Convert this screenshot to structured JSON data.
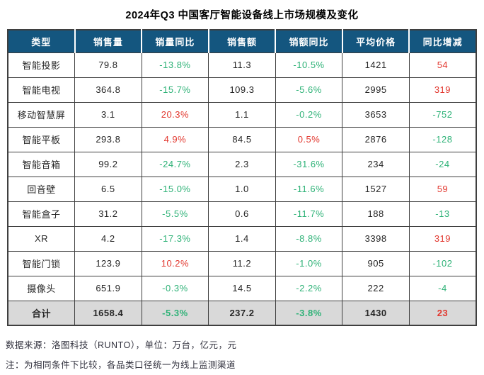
{
  "title": "2024年Q3 中国客厅智能设备线上市场规模及变化",
  "colors": {
    "header_bg": "#14567F",
    "header_text": "#FFFFFF",
    "body_text": "#262626",
    "green": "#2EB277",
    "red": "#E2382F",
    "total_bg": "#D9D9D9",
    "border": "#3F3F3F",
    "note_text": "#32323E"
  },
  "table": {
    "headers": [
      "类型",
      "销售量",
      "销量同比",
      "销售额",
      "销额同比",
      "平均价格",
      "同比增减"
    ],
    "rows": [
      {
        "cells": [
          {
            "t": "智能投影"
          },
          {
            "t": "79.8"
          },
          {
            "t": "-13.8%",
            "c": "g"
          },
          {
            "t": "11.3"
          },
          {
            "t": "-10.5%",
            "c": "g"
          },
          {
            "t": "1421"
          },
          {
            "t": "54",
            "c": "r"
          }
        ]
      },
      {
        "cells": [
          {
            "t": "智能电视"
          },
          {
            "t": "364.8"
          },
          {
            "t": "-15.7%",
            "c": "g"
          },
          {
            "t": "109.3"
          },
          {
            "t": "-5.6%",
            "c": "g"
          },
          {
            "t": "2995"
          },
          {
            "t": "319",
            "c": "r"
          }
        ]
      },
      {
        "cells": [
          {
            "t": "移动智慧屏"
          },
          {
            "t": "3.1"
          },
          {
            "t": "20.3%",
            "c": "r"
          },
          {
            "t": "1.1"
          },
          {
            "t": "-0.2%",
            "c": "g"
          },
          {
            "t": "3653"
          },
          {
            "t": "-752",
            "c": "g"
          }
        ]
      },
      {
        "cells": [
          {
            "t": "智能平板"
          },
          {
            "t": "293.8"
          },
          {
            "t": "4.9%",
            "c": "r"
          },
          {
            "t": "84.5"
          },
          {
            "t": "0.5%",
            "c": "r"
          },
          {
            "t": "2876"
          },
          {
            "t": "-128",
            "c": "g"
          }
        ]
      },
      {
        "cells": [
          {
            "t": "智能音箱"
          },
          {
            "t": "99.2"
          },
          {
            "t": "-24.7%",
            "c": "g"
          },
          {
            "t": "2.3"
          },
          {
            "t": "-31.6%",
            "c": "g"
          },
          {
            "t": "234"
          },
          {
            "t": "-24",
            "c": "g"
          }
        ]
      },
      {
        "cells": [
          {
            "t": "回音壁"
          },
          {
            "t": "6.5"
          },
          {
            "t": "-15.0%",
            "c": "g"
          },
          {
            "t": "1.0"
          },
          {
            "t": "-11.6%",
            "c": "g"
          },
          {
            "t": "1527"
          },
          {
            "t": "59",
            "c": "r"
          }
        ]
      },
      {
        "cells": [
          {
            "t": "智能盒子"
          },
          {
            "t": "31.2"
          },
          {
            "t": "-5.5%",
            "c": "g"
          },
          {
            "t": "0.6"
          },
          {
            "t": "-11.7%",
            "c": "g"
          },
          {
            "t": "188"
          },
          {
            "t": "-13",
            "c": "g"
          }
        ]
      },
      {
        "cells": [
          {
            "t": "XR"
          },
          {
            "t": "4.2"
          },
          {
            "t": "-17.3%",
            "c": "g"
          },
          {
            "t": "1.4"
          },
          {
            "t": "-8.8%",
            "c": "g"
          },
          {
            "t": "3398"
          },
          {
            "t": "319",
            "c": "r"
          }
        ]
      },
      {
        "cells": [
          {
            "t": "智能门锁"
          },
          {
            "t": "123.9"
          },
          {
            "t": "10.2%",
            "c": "r"
          },
          {
            "t": "11.2"
          },
          {
            "t": "-1.0%",
            "c": "g"
          },
          {
            "t": "905"
          },
          {
            "t": "-102",
            "c": "g"
          }
        ]
      },
      {
        "cells": [
          {
            "t": "摄像头"
          },
          {
            "t": "651.9"
          },
          {
            "t": "-0.3%",
            "c": "g"
          },
          {
            "t": "14.5"
          },
          {
            "t": "-2.2%",
            "c": "g"
          },
          {
            "t": "222"
          },
          {
            "t": "-4",
            "c": "g"
          }
        ]
      }
    ],
    "total": {
      "cells": [
        {
          "t": "合计"
        },
        {
          "t": "1658.4"
        },
        {
          "t": "-5.3%",
          "c": "g"
        },
        {
          "t": "237.2"
        },
        {
          "t": "-3.8%",
          "c": "g"
        },
        {
          "t": "1430"
        },
        {
          "t": "23",
          "c": "r"
        }
      ]
    }
  },
  "notes": {
    "source": "数据来源：洛图科技（RUNTO），单位：万台，亿元，元",
    "caveat": "注：为相同条件下比较，各品类口径统一为线上监测渠道"
  },
  "chart_data": {
    "type": "table",
    "title": "2024年Q3 中国客厅智能设备线上市场规模及变化",
    "columns": [
      "类型",
      "销售量",
      "销量同比",
      "销售额",
      "销额同比",
      "平均价格",
      "同比增减"
    ],
    "units": {
      "销售量": "万台",
      "销售额": "亿元",
      "平均价格": "元",
      "同比增减": "元"
    },
    "rows": [
      [
        "智能投影",
        79.8,
        -13.8,
        11.3,
        -10.5,
        1421,
        54
      ],
      [
        "智能电视",
        364.8,
        -15.7,
        109.3,
        -5.6,
        2995,
        319
      ],
      [
        "移动智慧屏",
        3.1,
        20.3,
        1.1,
        -0.2,
        3653,
        -752
      ],
      [
        "智能平板",
        293.8,
        4.9,
        84.5,
        0.5,
        2876,
        -128
      ],
      [
        "智能音箱",
        99.2,
        -24.7,
        2.3,
        -31.6,
        234,
        -24
      ],
      [
        "回音壁",
        6.5,
        -15.0,
        1.0,
        -11.6,
        1527,
        59
      ],
      [
        "智能盒子",
        31.2,
        -5.5,
        0.6,
        -11.7,
        188,
        -13
      ],
      [
        "XR",
        4.2,
        -17.3,
        1.4,
        -8.8,
        3398,
        319
      ],
      [
        "智能门锁",
        123.9,
        10.2,
        11.2,
        -1.0,
        905,
        -102
      ],
      [
        "摄像头",
        651.9,
        -0.3,
        14.5,
        -2.2,
        222,
        -4
      ]
    ],
    "total_row": [
      "合计",
      1658.4,
      -5.3,
      237.2,
      -3.8,
      1430,
      23
    ],
    "color_rule": "负值绿色(#2EB277)，正值红色(#E2382F)，同比列与增减列着色",
    "notes": [
      "数据来源：洛图科技（RUNTO），单位：万台，亿元，元",
      "注：为相同条件下比较，各品类口径统一为线上监测渠道"
    ]
  }
}
